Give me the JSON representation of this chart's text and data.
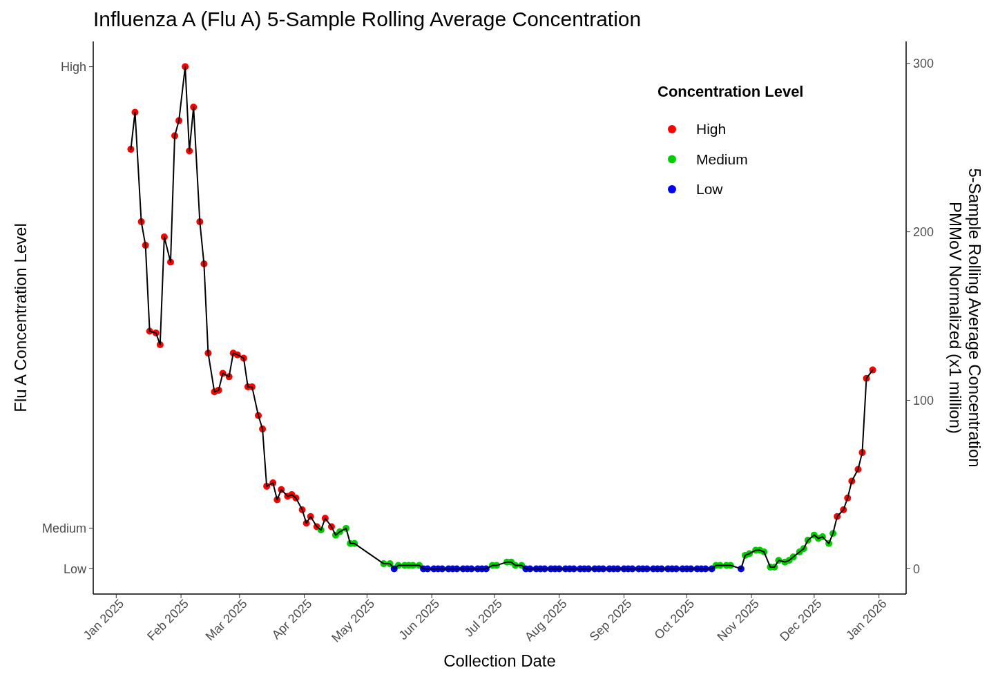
{
  "chart_data": {
    "type": "scatter",
    "title": "Influenza A (Flu A) 5-Sample Rolling Average Concentration",
    "xlabel": "Collection Date",
    "y2label": "Flu A Concentration Level",
    "ylabel": "5-Sample Rolling Average Concentration\nPMMoV Normalized (x1 million)",
    "legend_title": "Concentration Level",
    "legend": "top right",
    "grid": false,
    "marker": "circle",
    "xlim": [
      "2024-12-21",
      "2026-01-14"
    ],
    "xticks": [
      {
        "value": "2025-01-01",
        "label": "Jan 2025"
      },
      {
        "value": "2025-02-01",
        "label": "Feb 2025"
      },
      {
        "value": "2025-03-01",
        "label": "Mar 2025"
      },
      {
        "value": "2025-04-01",
        "label": "Apr 2025"
      },
      {
        "value": "2025-05-01",
        "label": "May 2025"
      },
      {
        "value": "2025-06-01",
        "label": "Jun 2025"
      },
      {
        "value": "2025-07-01",
        "label": "Jul 2025"
      },
      {
        "value": "2025-08-01",
        "label": "Aug 2025"
      },
      {
        "value": "2025-09-01",
        "label": "Sep 2025"
      },
      {
        "value": "2025-10-01",
        "label": "Oct 2025"
      },
      {
        "value": "2025-11-01",
        "label": "Nov 2025"
      },
      {
        "value": "2025-12-01",
        "label": "Dec 2025"
      },
      {
        "value": "2026-01-01",
        "label": "Jan 2026"
      }
    ],
    "ref_lines": [
      {
        "axis": "y",
        "value": 0,
        "label": "Low"
      },
      {
        "axis": "y",
        "value": 24,
        "label": "Medium"
      },
      {
        "axis": "y",
        "value": 298,
        "label": "High"
      }
    ],
    "ylim": [
      -15,
      313
    ],
    "yticks": [
      0,
      100,
      200,
      300
    ],
    "series": [
      {
        "type": "line",
        "color": "#000000",
        "marker": "none",
        "x": [
          "2025-01-08",
          "2025-01-10",
          "2025-01-13",
          "2025-01-15",
          "2025-01-17",
          "2025-01-20",
          "2025-01-22",
          "2025-01-24",
          "2025-01-27",
          "2025-01-29",
          "2025-01-31",
          "2025-02-03",
          "2025-02-05",
          "2025-02-07",
          "2025-02-10",
          "2025-02-12",
          "2025-02-14",
          "2025-02-17",
          "2025-02-19",
          "2025-02-21",
          "2025-02-24",
          "2025-02-26",
          "2025-02-28",
          "2025-03-03",
          "2025-03-05",
          "2025-03-07",
          "2025-03-10",
          "2025-03-12",
          "2025-03-14",
          "2025-03-17",
          "2025-03-19",
          "2025-03-21",
          "2025-03-24",
          "2025-03-26",
          "2025-03-28",
          "2025-03-31",
          "2025-04-02",
          "2025-04-04",
          "2025-04-07",
          "2025-04-09",
          "2025-04-11",
          "2025-04-14",
          "2025-04-16",
          "2025-04-18",
          "2025-04-21",
          "2025-04-23",
          "2025-04-25",
          "2025-05-09",
          "2025-05-12",
          "2025-05-14",
          "2025-05-16",
          "2025-05-19",
          "2025-05-21",
          "2025-05-23",
          "2025-05-26",
          "2025-05-28",
          "2025-05-30",
          "2025-06-02",
          "2025-06-04",
          "2025-06-06",
          "2025-06-09",
          "2025-06-11",
          "2025-06-13",
          "2025-06-16",
          "2025-06-18",
          "2025-06-20",
          "2025-06-23",
          "2025-06-25",
          "2025-06-27",
          "2025-06-30",
          "2025-07-02",
          "2025-07-07",
          "2025-07-09",
          "2025-07-11",
          "2025-07-14",
          "2025-07-16",
          "2025-07-18",
          "2025-07-21",
          "2025-07-23",
          "2025-07-25",
          "2025-07-28",
          "2025-07-30",
          "2025-08-01",
          "2025-08-04",
          "2025-08-06",
          "2025-08-08",
          "2025-08-11",
          "2025-08-13",
          "2025-08-15",
          "2025-08-18",
          "2025-08-20",
          "2025-08-22",
          "2025-08-25",
          "2025-08-27",
          "2025-08-29",
          "2025-09-01",
          "2025-09-03",
          "2025-09-05",
          "2025-09-08",
          "2025-09-10",
          "2025-09-12",
          "2025-09-15",
          "2025-09-17",
          "2025-09-19",
          "2025-09-22",
          "2025-09-24",
          "2025-09-26",
          "2025-09-29",
          "2025-10-01",
          "2025-10-03",
          "2025-10-06",
          "2025-10-08",
          "2025-10-10",
          "2025-10-13",
          "2025-10-15",
          "2025-10-17",
          "2025-10-20",
          "2025-10-22",
          "2025-10-27",
          "2025-10-29",
          "2025-10-31",
          "2025-11-03",
          "2025-11-05",
          "2025-11-07",
          "2025-11-10",
          "2025-11-12",
          "2025-11-14",
          "2025-11-17",
          "2025-11-19",
          "2025-11-21",
          "2025-11-24",
          "2025-11-26",
          "2025-11-28",
          "2025-12-01",
          "2025-12-03",
          "2025-12-05",
          "2025-12-08",
          "2025-12-10",
          "2025-12-12",
          "2025-12-15",
          "2025-12-17",
          "2025-12-19",
          "2025-12-22",
          "2025-12-24",
          "2025-12-26",
          "2025-12-29"
        ],
        "values": [
          249,
          271,
          206,
          192,
          141,
          140,
          133,
          197,
          182,
          257,
          266,
          298,
          248,
          274,
          206,
          181,
          128,
          105,
          106,
          116,
          114,
          128,
          127,
          125,
          108,
          108,
          91,
          83,
          49,
          51,
          41,
          47,
          43,
          44,
          42,
          35,
          27,
          31,
          25,
          23,
          30,
          25,
          20,
          22,
          24,
          15,
          15,
          3,
          3,
          0,
          2,
          2,
          2,
          2,
          2,
          0,
          0,
          0,
          0,
          0,
          0,
          0,
          0,
          0,
          0,
          0,
          0,
          0,
          0,
          2,
          2,
          4,
          4,
          2,
          2,
          0,
          0,
          0,
          0,
          0,
          0,
          0,
          0,
          0,
          0,
          0,
          0,
          0,
          0,
          0,
          0,
          0,
          0,
          0,
          0,
          0,
          0,
          0,
          0,
          0,
          0,
          0,
          0,
          0,
          0,
          0,
          0,
          0,
          0,
          0,
          0,
          0,
          0,
          0,
          2,
          2,
          2,
          2,
          0,
          8,
          9,
          11,
          11,
          10,
          1,
          1,
          5,
          4,
          5,
          7,
          10,
          12,
          17,
          20,
          18,
          19,
          15,
          21,
          31,
          35,
          42,
          52,
          59,
          69,
          113,
          118
        ]
      },
      {
        "name": "High",
        "color": "#ff0000",
        "x": [
          "2025-01-08",
          "2025-01-10",
          "2025-01-13",
          "2025-01-15",
          "2025-01-17",
          "2025-01-20",
          "2025-01-22",
          "2025-01-24",
          "2025-01-27",
          "2025-01-29",
          "2025-01-31",
          "2025-02-03",
          "2025-02-05",
          "2025-02-07",
          "2025-02-10",
          "2025-02-12",
          "2025-02-14",
          "2025-02-17",
          "2025-02-19",
          "2025-02-21",
          "2025-02-24",
          "2025-02-26",
          "2025-02-28",
          "2025-03-03",
          "2025-03-05",
          "2025-03-07",
          "2025-03-10",
          "2025-03-12",
          "2025-03-14",
          "2025-03-17",
          "2025-03-19",
          "2025-03-21",
          "2025-03-24",
          "2025-03-26",
          "2025-03-28",
          "2025-03-31",
          "2025-04-02",
          "2025-04-04",
          "2025-04-07",
          "2025-04-11",
          "2025-04-14",
          "2025-12-12",
          "2025-12-15",
          "2025-12-17",
          "2025-12-19",
          "2025-12-22",
          "2025-12-24",
          "2025-12-26",
          "2025-12-29"
        ],
        "values": [
          249,
          271,
          206,
          192,
          141,
          140,
          133,
          197,
          182,
          257,
          266,
          298,
          248,
          274,
          206,
          181,
          128,
          105,
          106,
          116,
          114,
          128,
          127,
          125,
          108,
          108,
          91,
          83,
          49,
          51,
          41,
          47,
          43,
          44,
          42,
          35,
          27,
          31,
          25,
          30,
          25,
          31,
          35,
          42,
          52,
          59,
          69,
          113,
          118
        ]
      },
      {
        "name": "Medium",
        "color": "#00cd00",
        "x": [
          "2025-04-09",
          "2025-04-16",
          "2025-04-18",
          "2025-04-21",
          "2025-04-23",
          "2025-04-25",
          "2025-05-09",
          "2025-05-12",
          "2025-05-16",
          "2025-05-19",
          "2025-05-21",
          "2025-05-23",
          "2025-05-26",
          "2025-06-30",
          "2025-07-02",
          "2025-07-07",
          "2025-07-09",
          "2025-07-11",
          "2025-07-14",
          "2025-10-15",
          "2025-10-17",
          "2025-10-20",
          "2025-10-22",
          "2025-10-29",
          "2025-10-31",
          "2025-11-03",
          "2025-11-05",
          "2025-11-07",
          "2025-11-10",
          "2025-11-12",
          "2025-11-14",
          "2025-11-17",
          "2025-11-19",
          "2025-11-21",
          "2025-11-24",
          "2025-11-26",
          "2025-11-28",
          "2025-12-01",
          "2025-12-03",
          "2025-12-05",
          "2025-12-08",
          "2025-12-10"
        ],
        "values": [
          23,
          20,
          22,
          24,
          15,
          15,
          3,
          3,
          2,
          2,
          2,
          2,
          2,
          2,
          2,
          4,
          4,
          2,
          2,
          2,
          2,
          2,
          2,
          8,
          9,
          11,
          11,
          10,
          1,
          1,
          5,
          4,
          5,
          7,
          10,
          12,
          17,
          20,
          18,
          19,
          15,
          21
        ]
      },
      {
        "name": "Low",
        "color": "#0000ff",
        "x": [
          "2025-05-14",
          "2025-05-28",
          "2025-05-30",
          "2025-06-02",
          "2025-06-04",
          "2025-06-06",
          "2025-06-09",
          "2025-06-11",
          "2025-06-13",
          "2025-06-16",
          "2025-06-18",
          "2025-06-20",
          "2025-06-23",
          "2025-06-25",
          "2025-06-27",
          "2025-07-16",
          "2025-07-18",
          "2025-07-21",
          "2025-07-23",
          "2025-07-25",
          "2025-07-28",
          "2025-07-30",
          "2025-08-01",
          "2025-08-04",
          "2025-08-06",
          "2025-08-08",
          "2025-08-11",
          "2025-08-13",
          "2025-08-15",
          "2025-08-18",
          "2025-08-20",
          "2025-08-22",
          "2025-08-25",
          "2025-08-27",
          "2025-08-29",
          "2025-09-01",
          "2025-09-03",
          "2025-09-05",
          "2025-09-08",
          "2025-09-10",
          "2025-09-12",
          "2025-09-15",
          "2025-09-17",
          "2025-09-19",
          "2025-09-22",
          "2025-09-24",
          "2025-09-26",
          "2025-09-29",
          "2025-10-01",
          "2025-10-03",
          "2025-10-06",
          "2025-10-08",
          "2025-10-10",
          "2025-10-13",
          "2025-10-27"
        ],
        "values": [
          0,
          0,
          0,
          0,
          0,
          0,
          0,
          0,
          0,
          0,
          0,
          0,
          0,
          0,
          0,
          0,
          0,
          0,
          0,
          0,
          0,
          0,
          0,
          0,
          0,
          0,
          0,
          0,
          0,
          0,
          0,
          0,
          0,
          0,
          0,
          0,
          0,
          0,
          0,
          0,
          0,
          0,
          0,
          0,
          0,
          0,
          0,
          0,
          0,
          0,
          0,
          0,
          0,
          0,
          0
        ]
      }
    ]
  }
}
